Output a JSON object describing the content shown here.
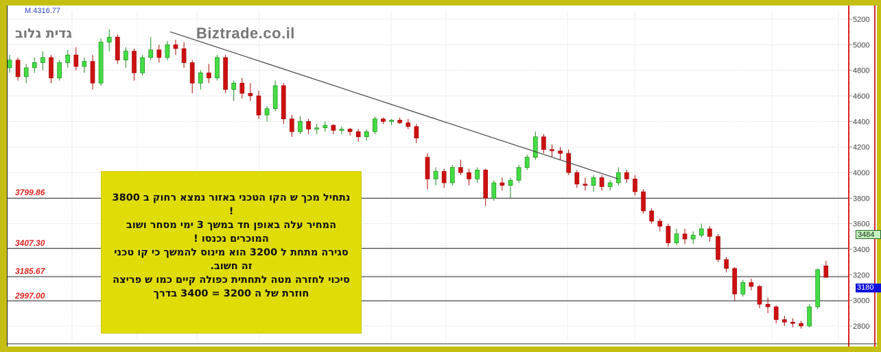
{
  "header": {
    "indicator_text": "M.4316.77",
    "stock_name": "גדית גלוב",
    "brand": "Biztrade.co.il"
  },
  "levels": [
    {
      "label": "3799.86",
      "value": 3799.86
    },
    {
      "label": "3407.30",
      "value": 3407.3
    },
    {
      "label": "3185.67",
      "value": 3185.67
    },
    {
      "label": "2997.00",
      "value": 2997.0
    }
  ],
  "price_tags": {
    "green": "3484",
    "blue": "3180"
  },
  "annotation": {
    "lines": [
      "נתחיל  מכך ש הקו הטכני באזור  נמצא רחוק ב 3800 !",
      "המחיר  עלה באופן חד  במשך 3 ימי מסחר  ושוב המוכרים נכנסו !",
      "סגירה  מתחת ל 3200  הוא  מינוס להמשך כי קו טכני זה חשוב.",
      "סיכוי לחזרה מטה לתחתית כפולה קיים כמו  ש פריצה חוזרת של ה 3200 = 3400  בדרך"
    ]
  },
  "colors": {
    "frame": "#c4bf12",
    "up": "#44dd44",
    "down": "#cc1111",
    "axis": "#dd2222",
    "note_bg": "#e0dc06"
  },
  "chart_data": {
    "type": "candlestick",
    "ylim": [
      2650,
      5300
    ],
    "y_ticks": [
      2800,
      3000,
      3200,
      3400,
      3600,
      3800,
      4000,
      4200,
      4400,
      4600,
      4800,
      5000,
      5200
    ],
    "grid": true,
    "horizontal_lines": [
      3799.86,
      3407.3,
      3185.67,
      2997.0
    ],
    "trendline": {
      "from_index": 19,
      "from_value": 5080,
      "to_index": 73,
      "to_value": 3950
    },
    "ohlc": [
      [
        4820,
        4920,
        4780,
        4880
      ],
      [
        4880,
        4900,
        4720,
        4750
      ],
      [
        4750,
        4850,
        4700,
        4820
      ],
      [
        4820,
        4900,
        4780,
        4860
      ],
      [
        4860,
        4950,
        4800,
        4900
      ],
      [
        4900,
        4920,
        4700,
        4740
      ],
      [
        4740,
        4880,
        4720,
        4860
      ],
      [
        4860,
        4960,
        4820,
        4920
      ],
      [
        4920,
        4980,
        4800,
        4830
      ],
      [
        4830,
        4900,
        4780,
        4870
      ],
      [
        4870,
        4920,
        4650,
        4700
      ],
      [
        4700,
        5050,
        4680,
        5020
      ],
      [
        5020,
        5120,
        4950,
        5060
      ],
      [
        5060,
        5080,
        4850,
        4880
      ],
      [
        4880,
        4980,
        4820,
        4950
      ],
      [
        4950,
        4970,
        4720,
        4780
      ],
      [
        4780,
        4920,
        4760,
        4900
      ],
      [
        4900,
        5060,
        4880,
        4960
      ],
      [
        4960,
        5000,
        4860,
        4900
      ],
      [
        4900,
        5030,
        4880,
        5000
      ],
      [
        5000,
        5040,
        4920,
        4970
      ],
      [
        4970,
        5020,
        4820,
        4860
      ],
      [
        4860,
        4880,
        4620,
        4700
      ],
      [
        4700,
        4800,
        4650,
        4780
      ],
      [
        4780,
        4850,
        4700,
        4740
      ],
      [
        4740,
        4920,
        4720,
        4900
      ],
      [
        4900,
        4920,
        4620,
        4650
      ],
      [
        4650,
        4720,
        4560,
        4700
      ],
      [
        4700,
        4740,
        4580,
        4620
      ],
      [
        4620,
        4700,
        4560,
        4600
      ],
      [
        4600,
        4640,
        4420,
        4450
      ],
      [
        4450,
        4520,
        4400,
        4500
      ],
      [
        4500,
        4720,
        4480,
        4680
      ],
      [
        4680,
        4700,
        4380,
        4420
      ],
      [
        4420,
        4450,
        4280,
        4320
      ],
      [
        4320,
        4440,
        4300,
        4400
      ],
      [
        4400,
        4420,
        4300,
        4340
      ],
      [
        4340,
        4380,
        4300,
        4350
      ],
      [
        4350,
        4400,
        4320,
        4370
      ],
      [
        4370,
        4380,
        4300,
        4330
      ],
      [
        4330,
        4360,
        4300,
        4340
      ],
      [
        4340,
        4350,
        4290,
        4320
      ],
      [
        4320,
        4340,
        4240,
        4280
      ],
      [
        4280,
        4340,
        4250,
        4320
      ],
      [
        4320,
        4440,
        4300,
        4420
      ],
      [
        4420,
        4430,
        4380,
        4400
      ],
      [
        4400,
        4420,
        4370,
        4410
      ],
      [
        4410,
        4430,
        4380,
        4390
      ],
      [
        4390,
        4420,
        4340,
        4360
      ],
      [
        4360,
        4380,
        4230,
        4270
      ],
      [
        4120,
        4150,
        3870,
        3950
      ],
      [
        3950,
        4040,
        3900,
        4010
      ],
      [
        4010,
        4030,
        3880,
        3920
      ],
      [
        3920,
        4060,
        3900,
        4040
      ],
      [
        4040,
        4100,
        3980,
        4000
      ],
      [
        4000,
        4030,
        3900,
        3950
      ],
      [
        3950,
        4040,
        3920,
        4020
      ],
      [
        4020,
        4030,
        3740,
        3800
      ],
      [
        3800,
        3940,
        3780,
        3920
      ],
      [
        3920,
        3960,
        3860,
        3900
      ],
      [
        3900,
        3960,
        3800,
        3940
      ],
      [
        3940,
        4060,
        3920,
        4040
      ],
      [
        4040,
        4140,
        4020,
        4120
      ],
      [
        4120,
        4320,
        4100,
        4280
      ],
      [
        4280,
        4300,
        4150,
        4180
      ],
      [
        4180,
        4220,
        4120,
        4170
      ],
      [
        4170,
        4200,
        4100,
        4150
      ],
      [
        4150,
        4180,
        3980,
        4000
      ],
      [
        4000,
        4020,
        3880,
        3910
      ],
      [
        3910,
        3960,
        3860,
        3900
      ],
      [
        3900,
        3980,
        3850,
        3960
      ],
      [
        3960,
        3980,
        3860,
        3890
      ],
      [
        3890,
        3940,
        3860,
        3920
      ],
      [
        3920,
        4040,
        3900,
        4000
      ],
      [
        4000,
        4020,
        3920,
        3950
      ],
      [
        3950,
        3980,
        3820,
        3850
      ],
      [
        3850,
        3870,
        3680,
        3700
      ],
      [
        3700,
        3720,
        3600,
        3620
      ],
      [
        3620,
        3640,
        3540,
        3580
      ],
      [
        3580,
        3600,
        3420,
        3450
      ],
      [
        3450,
        3560,
        3430,
        3520
      ],
      [
        3520,
        3560,
        3440,
        3480
      ],
      [
        3480,
        3540,
        3440,
        3510
      ],
      [
        3510,
        3600,
        3490,
        3560
      ],
      [
        3560,
        3580,
        3460,
        3500
      ],
      [
        3500,
        3520,
        3300,
        3320
      ],
      [
        3320,
        3340,
        3220,
        3250
      ],
      [
        3250,
        3260,
        3000,
        3050
      ],
      [
        3050,
        3160,
        3030,
        3140
      ],
      [
        3140,
        3170,
        3080,
        3110
      ],
      [
        3110,
        3120,
        2940,
        2970
      ],
      [
        2970,
        3020,
        2900,
        2950
      ],
      [
        2950,
        2960,
        2820,
        2850
      ],
      [
        2850,
        2880,
        2800,
        2830
      ],
      [
        2830,
        2860,
        2790,
        2820
      ],
      [
        2820,
        2840,
        2780,
        2800
      ],
      [
        2800,
        2970,
        2790,
        2950
      ],
      [
        2950,
        3250,
        2930,
        3240
      ],
      [
        3270,
        3310,
        3180,
        3180
      ]
    ]
  }
}
